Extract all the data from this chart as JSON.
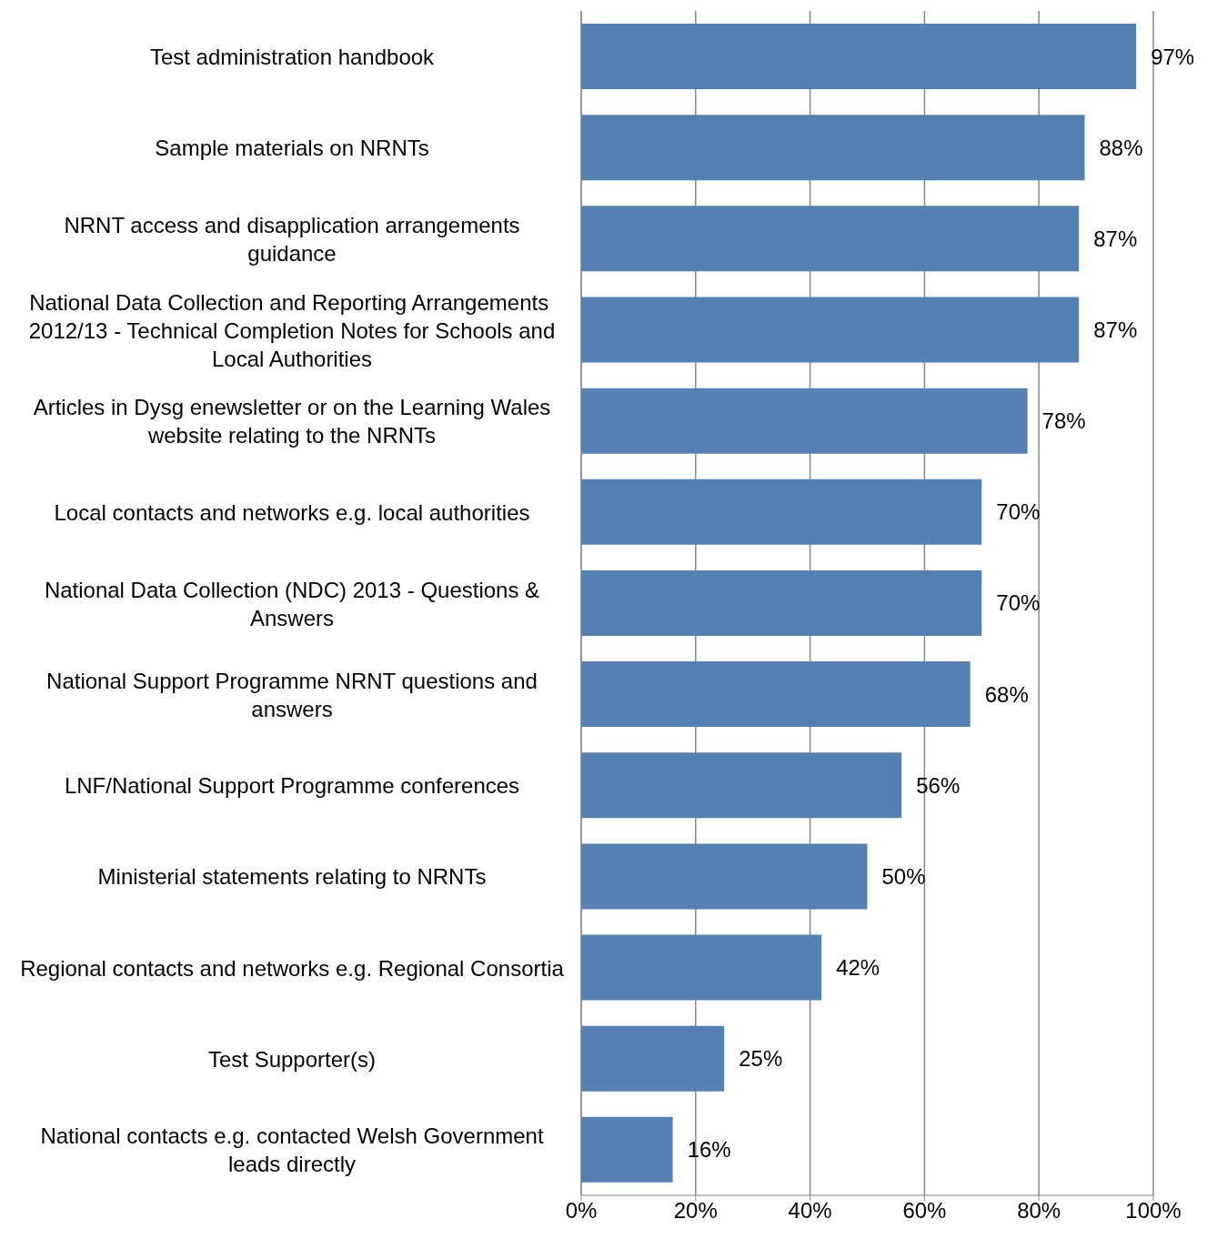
{
  "chart_data": {
    "type": "bar",
    "orientation": "horizontal",
    "categories": [
      "Test administration handbook",
      "Sample materials on NRNTs",
      "NRNT access and disapplication arrangements guidance",
      "National Data Collection and Reporting Arrangements  2012/13 - Technical Completion Notes for Schools and Local Authorities",
      "Articles in Dysg enewsletter or on the Learning Wales website relating to the NRNTs",
      "Local contacts and networks e.g. local authorities",
      "National Data Collection (NDC) 2013 - Questions & Answers",
      "National Support Programme NRNT questions and answers",
      "LNF/National Support Programme conferences",
      "Ministerial statements relating to NRNTs",
      "Regional contacts and networks e.g. Regional Consortia",
      "Test Supporter(s)",
      "National contacts e.g. contacted Welsh Government leads directly"
    ],
    "values": [
      97,
      88,
      87,
      87,
      78,
      70,
      70,
      68,
      56,
      50,
      42,
      25,
      16
    ],
    "value_labels": [
      "97%",
      "88%",
      "87%",
      "87%",
      "78%",
      "70%",
      "70%",
      "68%",
      "56%",
      "50%",
      "42%",
      "25%",
      "16%"
    ],
    "color": "#5580b4",
    "xlim": [
      0,
      100
    ],
    "xticks": [
      {
        "value": 0,
        "label": "0%"
      },
      {
        "value": 20,
        "label": "20%"
      },
      {
        "value": 40,
        "label": "40%"
      },
      {
        "value": 60,
        "label": "60%"
      },
      {
        "value": 80,
        "label": "80%"
      },
      {
        "value": 100,
        "label": "100%"
      }
    ],
    "grid": "x",
    "legend": false
  }
}
